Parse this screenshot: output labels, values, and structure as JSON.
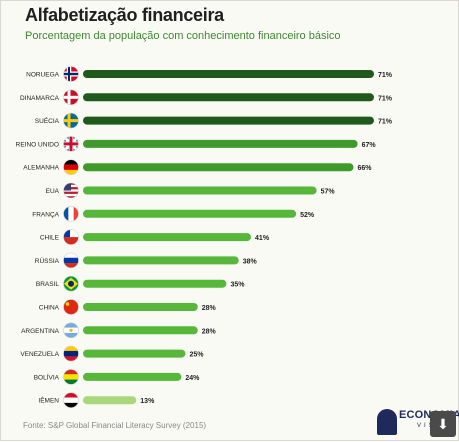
{
  "header": {
    "title": "Alfabetização financeira",
    "subtitle": "Porcentagem da população com conhecimento financeiro básico"
  },
  "footer": {
    "source": "Fonte: S&P Global Financial Literacy Survey (2015)",
    "logo_text": "ECONOMIA",
    "logo_sub": "VISUAL"
  },
  "colors": {
    "dark_green": "#1f5a1c",
    "mid_green": "#3f9a2c",
    "light_green": "#56b73b",
    "pale_green": "#a9d77a"
  },
  "chart_data": {
    "type": "bar",
    "orientation": "horizontal",
    "title": "Alfabetização financeira",
    "subtitle": "Porcentagem da população com conhecimento financeiro básico",
    "xlim": [
      0,
      71
    ],
    "grid": false,
    "categories": [
      "NORUEGA",
      "DINAMARCA",
      "SUÉCIA",
      "REINO UNIDO",
      "ALEMANHA",
      "EUA",
      "FRANÇA",
      "CHILE",
      "RÚSSIA",
      "BRASIL",
      "CHINA",
      "ARGENTINA",
      "VENEZUELA",
      "BOLÍVIA",
      "IÊMEN"
    ],
    "values": [
      71,
      71,
      71,
      67,
      66,
      57,
      52,
      41,
      38,
      35,
      28,
      28,
      25,
      24,
      13
    ],
    "value_labels": [
      "71%",
      "71%",
      "71%",
      "67%",
      "66%",
      "57%",
      "52%",
      "41%",
      "38%",
      "35%",
      "28%",
      "28%",
      "25%",
      "24%",
      "13%"
    ],
    "flags": [
      "norway-flag-icon",
      "denmark-flag-icon",
      "sweden-flag-icon",
      "uk-flag-icon",
      "germany-flag-icon",
      "usa-flag-icon",
      "france-flag-icon",
      "chile-flag-icon",
      "russia-flag-icon",
      "brazil-flag-icon",
      "china-flag-icon",
      "argentina-flag-icon",
      "venezuela-flag-icon",
      "bolivia-flag-icon",
      "yemen-flag-icon"
    ]
  }
}
